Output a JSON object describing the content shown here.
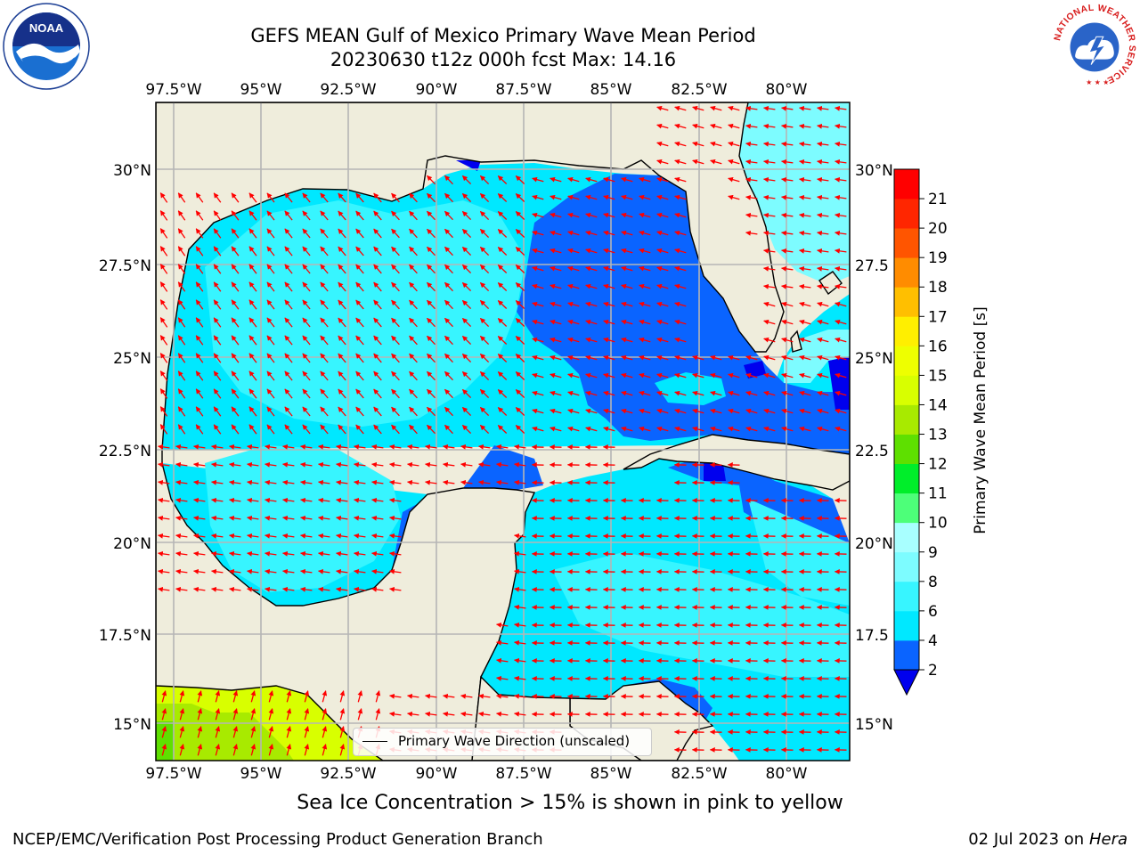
{
  "title": {
    "line1": "GEFS MEAN Gulf of Mexico Primary Wave Mean Period",
    "line2": "20230630 t12z 000h fcst   Max: 14.16"
  },
  "logos": {
    "noaa": "NOAA",
    "nws_ring": "NATIONAL WEATHER SERVICE"
  },
  "map": {
    "lon_ticks": [
      "97.5°W",
      "95°W",
      "92.5°W",
      "90°W",
      "87.5°W",
      "85°W",
      "82.5°W",
      "80°W"
    ],
    "lat_ticks_left": [
      "30°N",
      "27.5°N",
      "25°N",
      "22.5°N",
      "20°N",
      "17.5°N",
      "15°N"
    ],
    "lat_ticks_right": [
      "30°N",
      "27.5",
      "25°N",
      "22.5",
      "20°N",
      "17.5",
      "15°N"
    ],
    "lon_range": [
      -98,
      -78.2
    ],
    "lat_range": [
      14,
      31.7
    ],
    "land_color": "#efeddc",
    "grid_color": "#b5b5b5",
    "arrow_color": "#ff0000"
  },
  "legend": {
    "label": "Primary Wave Direction (unscaled)"
  },
  "colorbar": {
    "label": "Primary Wave Mean Period [s]",
    "ticks": [
      "2",
      "4",
      "6",
      "8",
      "9",
      "10",
      "11",
      "12",
      "13",
      "14",
      "15",
      "16",
      "17",
      "18",
      "19",
      "20",
      "21"
    ],
    "colors": [
      "#0a64ff",
      "#00e8ff",
      "#37f5ff",
      "#7dfcff",
      "#a8ffff",
      "#4dff79",
      "#00ee2a",
      "#5ee000",
      "#a8ea00",
      "#d8ff00",
      "#eeff00",
      "#ffef00",
      "#ffbf00",
      "#ff8c00",
      "#ff5500",
      "#ff2600",
      "#ff0000"
    ],
    "extend_color": "#0000ee"
  },
  "caption": "Sea Ice Concentration > 15% is shown in pink to yellow",
  "footer": {
    "left": "NCEP/EMC/Verification Post Processing Product Generation Branch",
    "right_date": "02 Jul 2023 on ",
    "right_host": "Hera"
  }
}
